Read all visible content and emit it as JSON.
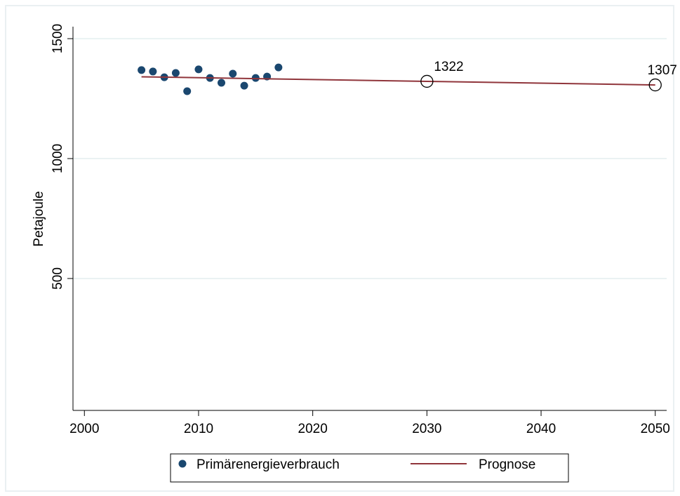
{
  "chart_data": {
    "type": "scatter-line",
    "y_label": "Petajoule",
    "xlim": [
      1999,
      2051
    ],
    "xticks": [
      2000,
      2010,
      2020,
      2030,
      2040,
      2050
    ],
    "ylim": [
      -50,
      1550
    ],
    "yticks": [
      500,
      1000,
      1500
    ],
    "grid": true,
    "series": [
      {
        "name": "Primärenergieverbrauch",
        "color": "#1a476f",
        "kind": "scatter",
        "x": [
          2005,
          2006,
          2007,
          2008,
          2009,
          2010,
          2011,
          2012,
          2013,
          2014,
          2015,
          2016,
          2017
        ],
        "values": [
          1369,
          1363,
          1339,
          1357,
          1281,
          1372,
          1336,
          1316,
          1354,
          1304,
          1336,
          1342,
          1380
        ]
      },
      {
        "name": "Prognose",
        "color": "#90353b",
        "kind": "line",
        "x": [
          2005,
          2030,
          2050
        ],
        "values": [
          1341,
          1322,
          1307
        ]
      }
    ],
    "forecast_points": {
      "x": [
        2030,
        2050
      ],
      "values": [
        1322,
        1307
      ]
    },
    "legend": "bottom"
  }
}
